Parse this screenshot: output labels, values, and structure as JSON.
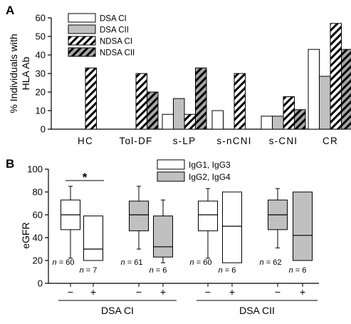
{
  "chart_data": [
    {
      "panel": "A",
      "type": "bar",
      "ylabel_lines": [
        "% Individuals with",
        "HLA Ab"
      ],
      "ylim": [
        0,
        60
      ],
      "yticks": [
        0,
        10,
        20,
        30,
        40,
        50,
        60
      ],
      "categories": [
        "HC",
        "Tol-DF",
        "s-LP",
        "s-nCNI",
        "s-CNI",
        "CR"
      ],
      "series": [
        {
          "name": "DSA CI",
          "fill": "#ffffff",
          "pattern": "none",
          "values": [
            0,
            0,
            8,
            10,
            7,
            43
          ]
        },
        {
          "name": "DSA CII",
          "fill": "#c0c0c0",
          "pattern": "none",
          "values": [
            0,
            0,
            16.5,
            0,
            7,
            28.5
          ]
        },
        {
          "name": "NDSA CI",
          "fill": "#ffffff",
          "pattern": "hatch",
          "values": [
            33,
            30,
            8,
            30,
            17.5,
            57
          ]
        },
        {
          "name": "NDSA CII",
          "fill": "#a6a6a6",
          "pattern": "hatch",
          "values": [
            0,
            20,
            33,
            0,
            10.5,
            43
          ]
        }
      ],
      "legend_position": "top-left",
      "grid": false
    },
    {
      "panel": "B",
      "type": "box",
      "ylabel": "eGFR",
      "ylim": [
        0,
        100
      ],
      "yticks": [
        0,
        20,
        40,
        60,
        80,
        100
      ],
      "legend": [
        {
          "name": "IgG1, IgG3",
          "fill": "#ffffff"
        },
        {
          "name": "IgG2, IgG4",
          "fill": "#c0c0c0"
        }
      ],
      "legend_position": "top-center",
      "groups": [
        "DSA CI",
        "DSA CII"
      ],
      "boxes": [
        {
          "group": "DSA CI",
          "subclass": "IgG1, IgG3",
          "sign": "−",
          "n_label": "n = 60",
          "whisker_low": 22,
          "q1": 47,
          "median": 60,
          "q3": 73,
          "whisker_high": 85
        },
        {
          "group": "DSA CI",
          "subclass": "IgG1, IgG3",
          "sign": "+",
          "n_label": "n = 7",
          "whisker_low": 20,
          "q1": 20,
          "median": 30,
          "q3": 59,
          "whisker_high": 59
        },
        {
          "group": "DSA CI",
          "subclass": "IgG2, IgG4",
          "sign": "−",
          "n_label": "n = 61",
          "whisker_low": 30,
          "q1": 46,
          "median": 60,
          "q3": 72,
          "whisker_high": 85
        },
        {
          "group": "DSA CI",
          "subclass": "IgG2, IgG4",
          "sign": "+",
          "n_label": "n = 6",
          "whisker_low": 18,
          "q1": 23,
          "median": 32,
          "q3": 59,
          "whisker_high": 73
        },
        {
          "group": "DSA CII",
          "subclass": "IgG1, IgG3",
          "sign": "−",
          "n_label": "n = 60",
          "whisker_low": 22,
          "q1": 46,
          "median": 60,
          "q3": 72,
          "whisker_high": 83
        },
        {
          "group": "DSA CII",
          "subclass": "IgG1, IgG3",
          "sign": "+",
          "n_label": "n = 6",
          "whisker_low": 18,
          "q1": 18,
          "median": 50,
          "q3": 80,
          "whisker_high": 80
        },
        {
          "group": "DSA CII",
          "subclass": "IgG2, IgG4",
          "sign": "−",
          "n_label": "n = 62",
          "whisker_low": 31,
          "q1": 47,
          "median": 60,
          "q3": 73,
          "whisker_high": 83
        },
        {
          "group": "DSA CII",
          "subclass": "IgG2, IgG4",
          "sign": "+",
          "n_label": "n = 6",
          "whisker_low": 20,
          "q1": 20,
          "median": 42,
          "q3": 80,
          "whisker_high": 80
        }
      ],
      "annotations": [
        {
          "text": "*",
          "between": [
            "DSA CI IgG1, IgG3 −",
            "DSA CI IgG1, IgG3 +"
          ]
        }
      ]
    }
  ]
}
